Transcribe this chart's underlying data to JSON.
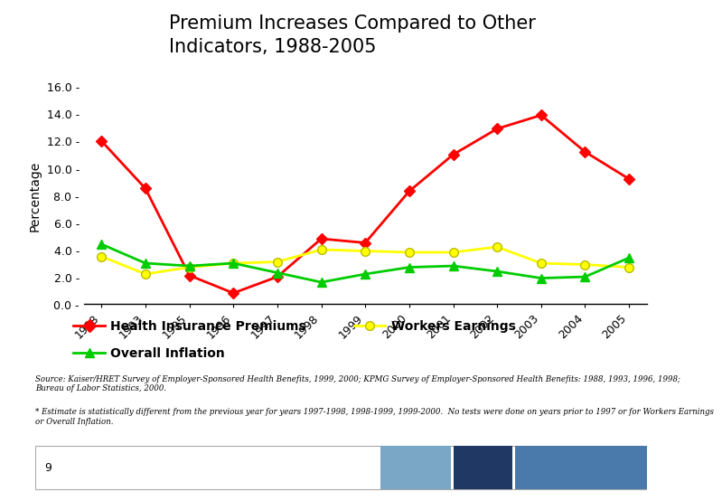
{
  "title": "Premium Increases Compared to Other\nIndicators, 1988-2005",
  "ylabel": "Percentage",
  "years": [
    "1988",
    "1993",
    "1995",
    "1996",
    "1997",
    "1998",
    "1999",
    "2000",
    "2001",
    "2002",
    "2003",
    "2004",
    "2005"
  ],
  "health_premiums": [
    12.0,
    8.5,
    2.1,
    0.8,
    2.0,
    4.8,
    4.5,
    8.3,
    11.0,
    12.9,
    13.9,
    11.2,
    9.2
  ],
  "workers_earnings": [
    3.5,
    2.2,
    2.7,
    3.0,
    3.1,
    4.0,
    3.9,
    3.8,
    3.8,
    4.2,
    3.0,
    2.9,
    2.7
  ],
  "overall_inflation": [
    4.4,
    3.0,
    2.8,
    3.0,
    2.3,
    1.6,
    2.2,
    2.7,
    2.8,
    2.4,
    1.9,
    2.0,
    3.4
  ],
  "premium_color": "#FF0000",
  "workers_color": "#FFFF00",
  "inflation_color": "#00CC00",
  "ylim": [
    0.0,
    16.0
  ],
  "yticks": [
    0.0,
    2.0,
    4.0,
    6.0,
    8.0,
    10.0,
    12.0,
    14.0,
    16.0
  ],
  "header_bg_color": "#1F3864",
  "source_text": "Source: Kaiser/HRET Survey of Employer-Sponsored Health Benefits, 1999, 2000; KPMG Survey of Employer-Sponsored Health Benefits: 1988, 1993, 1996, 1998;\nBureau of Labor Statistics, 2000.",
  "note_text": "* Estimate is statistically different from the previous year for years 1997-1998, 1998-1999, 1999-2000.  No tests were done on years prior to 1997 or for Workers Earnings\nor Overall Inflation.",
  "legend_premiums": "Health Insurance Premiums",
  "legend_workers": "Workers Earnings",
  "legend_inflation": "Overall Inflation",
  "footer_bar_colors": [
    "#7BA7C7",
    "#1F3864",
    "#4A7AAB"
  ],
  "footer_page": "9"
}
